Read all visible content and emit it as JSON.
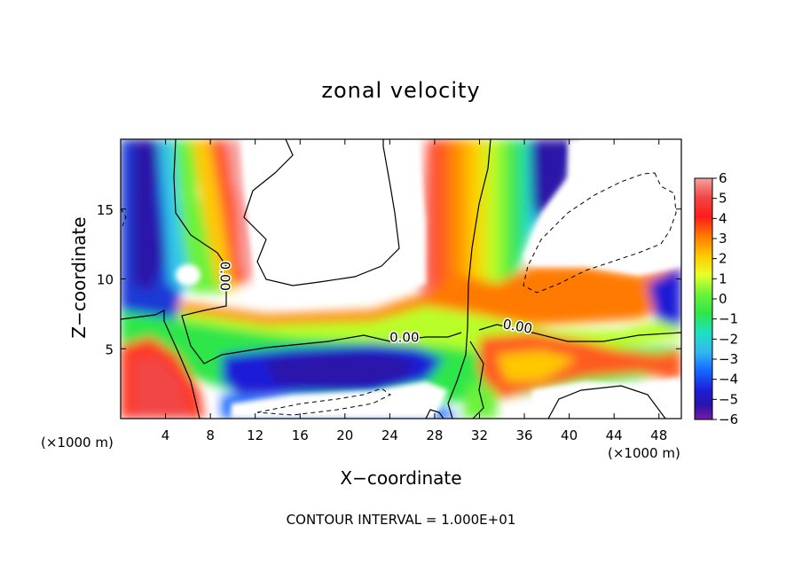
{
  "chart_data": {
    "type": "heatmap",
    "title": "zonal velocity",
    "xlabel": "X−coordinate",
    "ylabel": "Z−coordinate",
    "x_unit_label": "(×1000 m)",
    "note": "CONTOUR INTERVAL = 1.000E+01",
    "xlim": [
      0,
      50
    ],
    "ylim": [
      0,
      20
    ],
    "x_ticks": [
      4,
      8,
      12,
      16,
      20,
      24,
      28,
      32,
      36,
      40,
      44,
      48
    ],
    "y_ticks": [
      5,
      10,
      15
    ],
    "colorbar": {
      "ticks": [
        "6",
        "5",
        "4",
        "3",
        "2",
        "1",
        "0",
        "−1",
        "−2",
        "−3",
        "−4",
        "−5",
        "−6"
      ],
      "range": [
        -6,
        6
      ],
      "colors": [
        "#f4a2a2",
        "#f24545",
        "#ff1a1a",
        "#ff7a00",
        "#ffc800",
        "#e8ff2a",
        "#6cf23a",
        "#2ee64a",
        "#1fe0c0",
        "#33b7f2",
        "#1466ff",
        "#1d1dd6",
        "#2a12a8",
        "#7a1aa8"
      ]
    },
    "contour_labels": [
      {
        "text": "0.00",
        "x": 9.3,
        "z": 10.2,
        "rotate": 90
      },
      {
        "text": "0.00",
        "x": 25.3,
        "z": 5.8,
        "rotate": 0
      },
      {
        "text": "0.00",
        "x": 35.4,
        "z": 6.6,
        "rotate": 10
      }
    ],
    "grid": false
  }
}
